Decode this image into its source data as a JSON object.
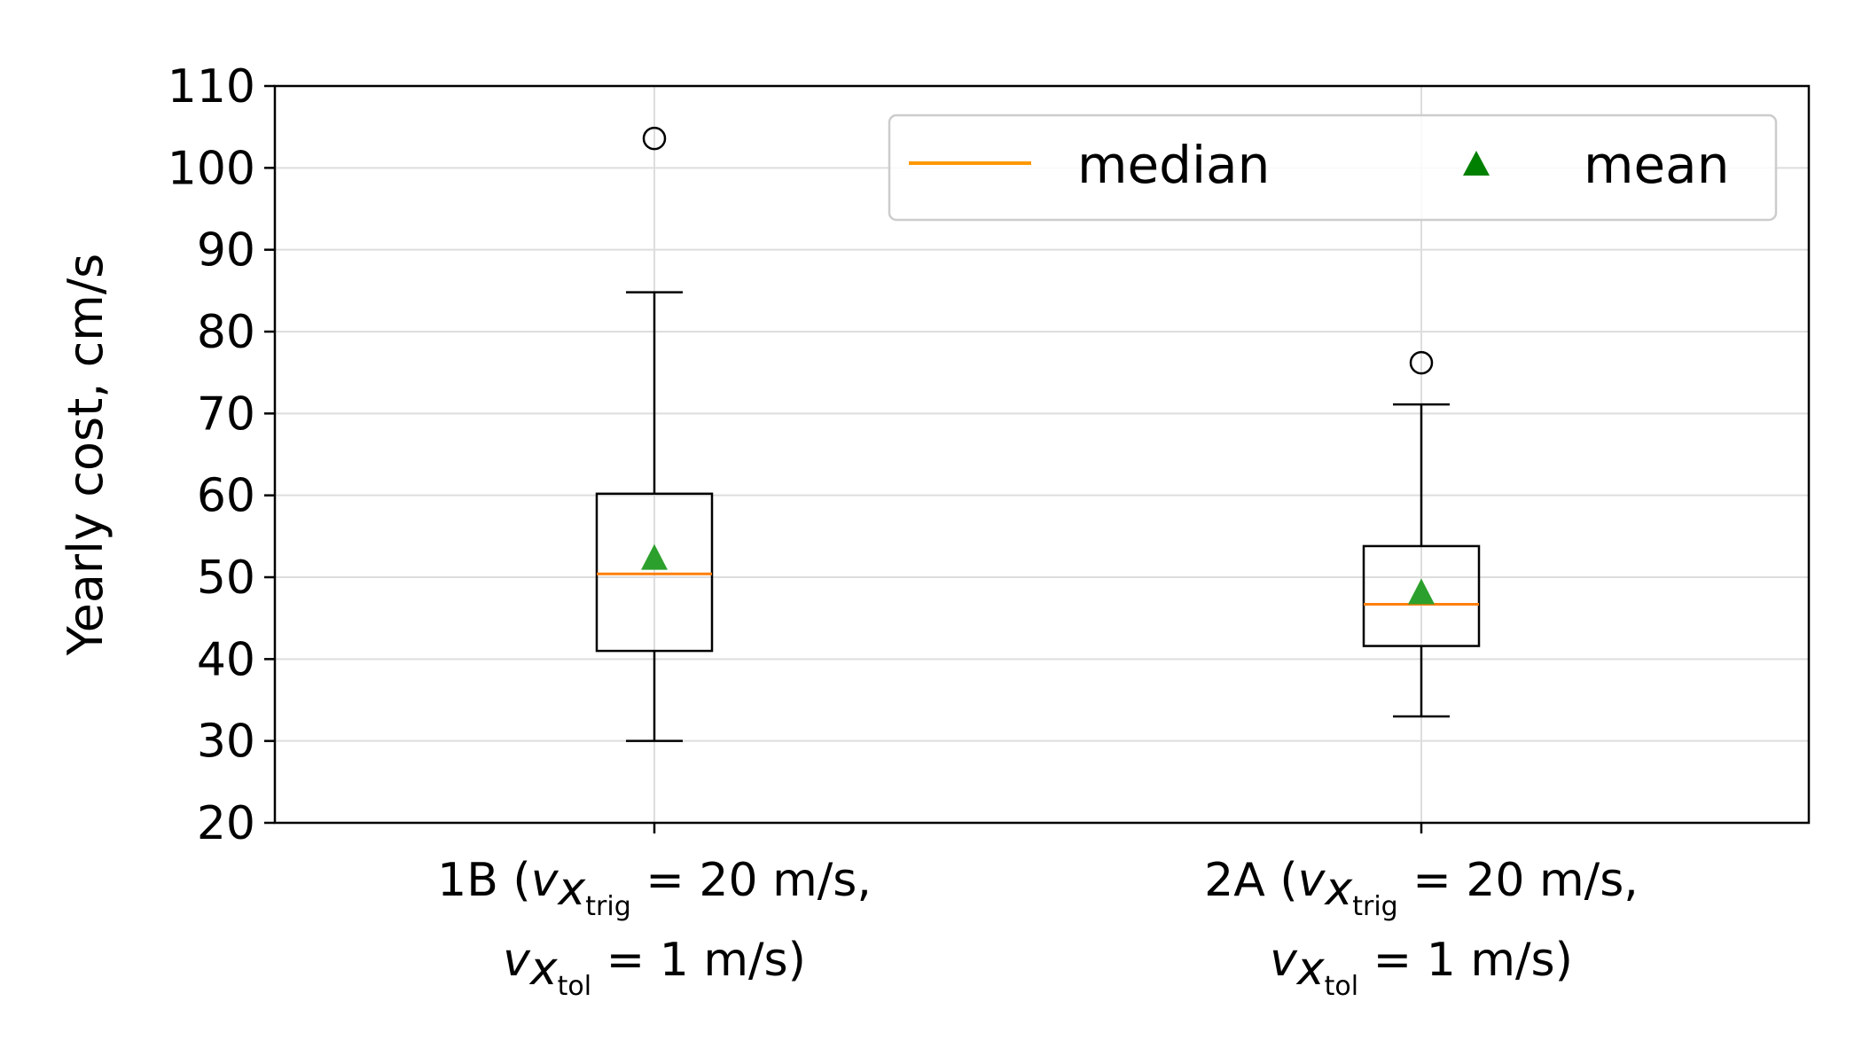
{
  "chart_data": {
    "type": "box",
    "title": "",
    "xlabel": "",
    "ylabel": "Yearly cost, cm/s",
    "ylim": [
      20,
      110
    ],
    "yticks": [
      20,
      30,
      40,
      50,
      60,
      70,
      80,
      90,
      100,
      110
    ],
    "grid": true,
    "legend": {
      "placement": "top-right",
      "entries": [
        {
          "label": "median",
          "symbol": "line",
          "color": "#ff9900"
        },
        {
          "label": "mean",
          "symbol": "triangle",
          "color": "#008000"
        }
      ]
    },
    "groups": [
      {
        "label_prefix": "1B (",
        "trig_var": "v",
        "trig_sub": "x",
        "trig_subsub": "trig",
        "trig_rest": " = 20 m/s,",
        "tol_var": "v",
        "tol_sub": "x",
        "tol_subsub": "tol",
        "tol_rest": " = 1 m/s)",
        "whisker_low": 30,
        "q1": 41,
        "median": 50.4,
        "q3": 60.2,
        "whisker_high": 84.8,
        "mean": 52.2,
        "outliers": [
          103.6
        ]
      },
      {
        "label_prefix": "2A (",
        "trig_var": "v",
        "trig_sub": "x",
        "trig_subsub": "trig",
        "trig_rest": " = 20 m/s,",
        "tol_var": "v",
        "tol_sub": "x",
        "tol_subsub": "tol",
        "tol_rest": " = 1 m/s)",
        "whisker_low": 33,
        "q1": 41.6,
        "median": 46.7,
        "q3": 53.8,
        "whisker_high": 71.1,
        "mean": 48,
        "outliers": [
          76.2
        ]
      }
    ],
    "colors": {
      "median": "#ff7f0e",
      "mean": "#2ca02c",
      "box": "#000000",
      "grid": "#dddddd"
    }
  }
}
